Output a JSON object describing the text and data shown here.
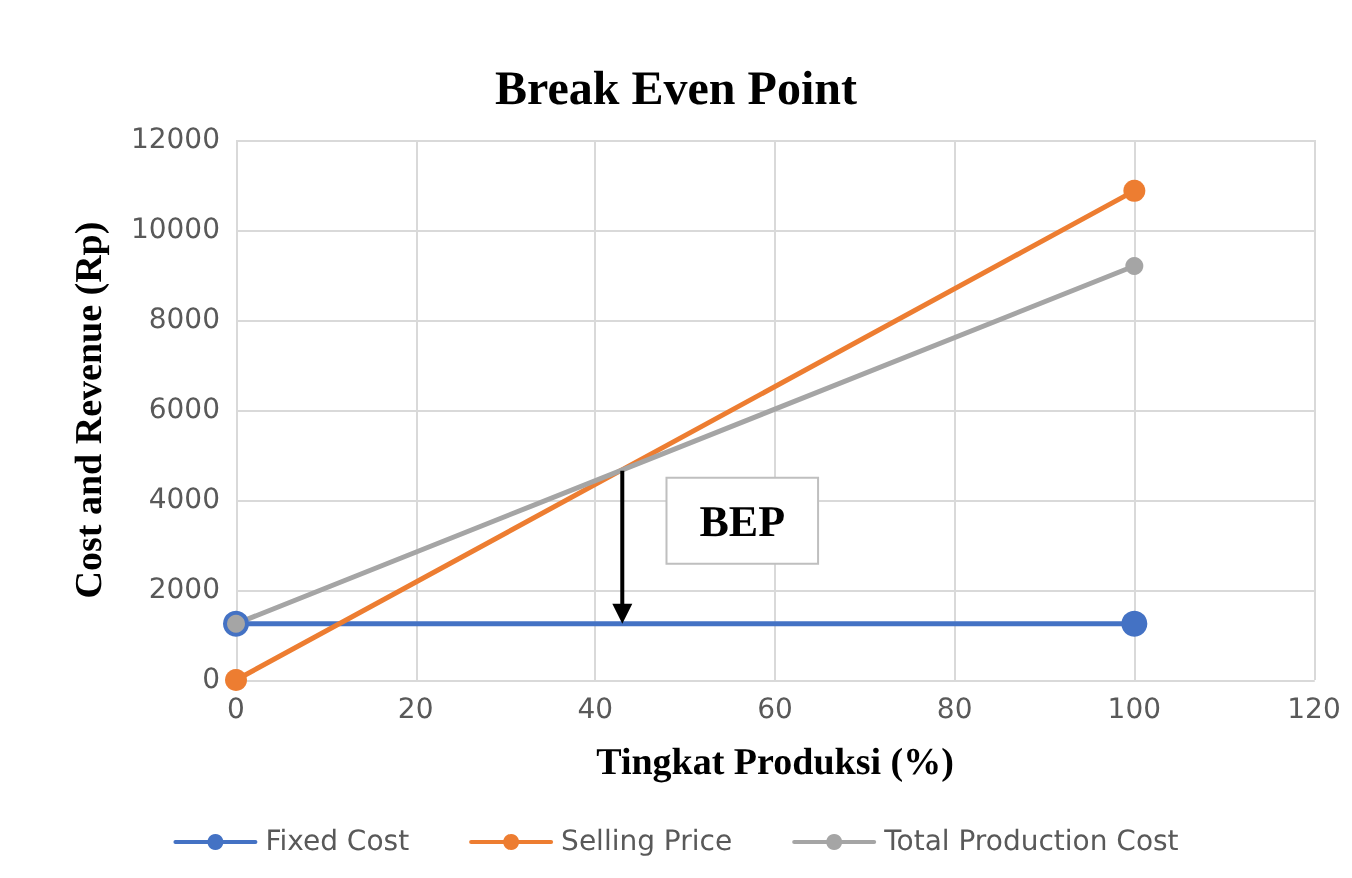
{
  "chart_data": {
    "type": "line",
    "title": "Break Even Point",
    "xlabel": "Tingkat Produksi (%)",
    "ylabel": "Cost and Revenue (Rp)",
    "x": [
      0,
      100
    ],
    "series": [
      {
        "name": "Fixed Cost",
        "color": "#4472c4",
        "values": [
          1250,
          1250
        ]
      },
      {
        "name": "Selling Price",
        "color": "#ed7d31",
        "values": [
          0,
          10870
        ]
      },
      {
        "name": "Total Production Cost",
        "color": "#a5a5a5",
        "values": [
          1250,
          9200
        ]
      }
    ],
    "xlim": [
      0,
      120
    ],
    "xticks": [
      0,
      20,
      40,
      60,
      80,
      100,
      120
    ],
    "ylim": [
      0,
      12000
    ],
    "yticks": [
      0,
      2000,
      4000,
      6000,
      8000,
      10000,
      12000
    ],
    "grid": true,
    "legend": "bottom",
    "marker": "circle",
    "line_style": "solid",
    "annotations": [
      {
        "text": "BEP",
        "x": 43,
        "y": 4650
      }
    ]
  }
}
